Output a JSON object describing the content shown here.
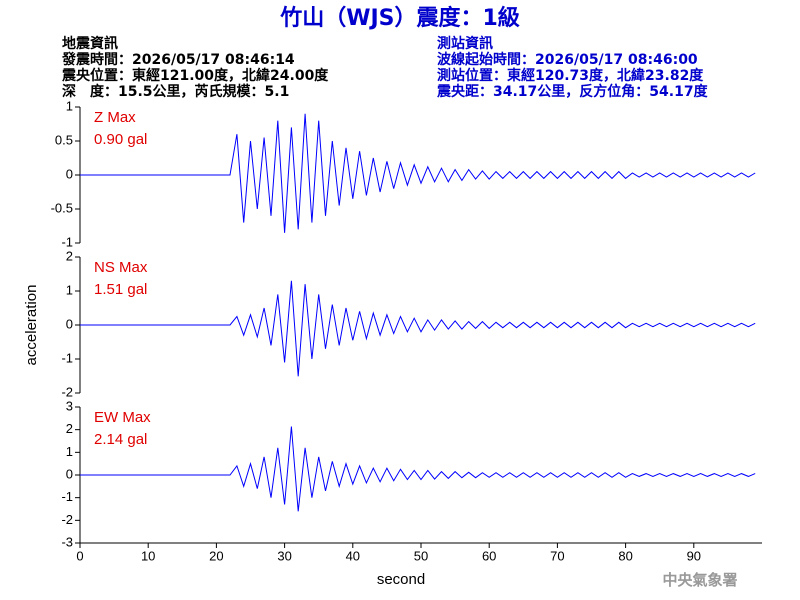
{
  "header": {
    "title": "竹山（WJS）震度：1級",
    "left": [
      "地震資訊",
      "發震時間：2026/05/17 08:46:14",
      "震央位置：東經121.00度，北緯24.00度",
      "深　度：15.5公里，芮氏規模：5.1"
    ],
    "right": [
      "測站資訊",
      "波線起始時間：2026/05/17 08:46:00",
      "測站位置：東經120.73度，北緯23.82度",
      "震央距：34.17公里，反方位角：54.17度"
    ],
    "footer": "中央氣象署"
  },
  "chart_data": [
    {
      "type": "line",
      "labels": [
        "Z Max",
        "0.90 gal"
      ],
      "label_color": "#e00000",
      "color": "#0000ff",
      "xlim": [
        0,
        100
      ],
      "ylim": [
        -1,
        1
      ],
      "yticks": [
        -1,
        -0.5,
        0,
        0.5,
        1
      ],
      "x": [
        0,
        22,
        23,
        24,
        25,
        26,
        27,
        28,
        29,
        30,
        31,
        32,
        33,
        34,
        35,
        36,
        37,
        38,
        39,
        40,
        41,
        42,
        43,
        44,
        45,
        46,
        47,
        48,
        49,
        50,
        51,
        52,
        53,
        54,
        55,
        56,
        57,
        58,
        59,
        60,
        61,
        62,
        63,
        64,
        65,
        66,
        67,
        68,
        69,
        70,
        71,
        72,
        73,
        74,
        75,
        76,
        77,
        78,
        79,
        80,
        81,
        82,
        83,
        84,
        85,
        86,
        87,
        88,
        89,
        90,
        91,
        92,
        93,
        94,
        95,
        96,
        97,
        98,
        99
      ],
      "values": [
        0,
        0,
        0.6,
        -0.7,
        0.5,
        -0.5,
        0.55,
        -0.6,
        0.8,
        -0.85,
        0.7,
        -0.8,
        0.9,
        -0.7,
        0.8,
        -0.6,
        0.5,
        -0.45,
        0.4,
        -0.35,
        0.35,
        -0.3,
        0.25,
        -0.25,
        0.2,
        -0.2,
        0.18,
        -0.15,
        0.15,
        -0.12,
        0.12,
        -0.1,
        0.1,
        -0.1,
        0.08,
        -0.08,
        0.08,
        -0.06,
        0.06,
        -0.06,
        0.05,
        -0.05,
        0.05,
        -0.05,
        0.05,
        -0.05,
        0.05,
        -0.05,
        0.05,
        -0.05,
        0.05,
        -0.05,
        0.05,
        -0.05,
        0.05,
        -0.05,
        0.05,
        -0.05,
        0.05,
        -0.05,
        0.03,
        -0.03,
        0.03,
        -0.03,
        0.03,
        -0.03,
        0.03,
        -0.03,
        0.03,
        -0.03,
        0.03,
        -0.03,
        0.03,
        -0.03,
        0.03,
        -0.03,
        0.03,
        -0.03,
        0.03
      ]
    },
    {
      "type": "line",
      "labels": [
        "NS Max",
        "1.51 gal"
      ],
      "label_color": "#e00000",
      "color": "#0000ff",
      "ylabel": "acceleration",
      "xlim": [
        0,
        100
      ],
      "ylim": [
        -2,
        2
      ],
      "yticks": [
        -2,
        -1,
        0,
        1,
        2
      ],
      "x": [
        0,
        22,
        23,
        24,
        25,
        26,
        27,
        28,
        29,
        30,
        31,
        32,
        33,
        34,
        35,
        36,
        37,
        38,
        39,
        40,
        41,
        42,
        43,
        44,
        45,
        46,
        47,
        48,
        49,
        50,
        51,
        52,
        53,
        54,
        55,
        56,
        57,
        58,
        59,
        60,
        61,
        62,
        63,
        64,
        65,
        66,
        67,
        68,
        69,
        70,
        71,
        72,
        73,
        74,
        75,
        76,
        77,
        78,
        79,
        80,
        81,
        82,
        83,
        84,
        85,
        86,
        87,
        88,
        89,
        90,
        91,
        92,
        93,
        94,
        95,
        96,
        97,
        98,
        99
      ],
      "values": [
        0,
        0,
        0.25,
        -0.3,
        0.3,
        -0.35,
        0.5,
        -0.6,
        0.9,
        -1.1,
        1.3,
        -1.51,
        1.2,
        -1.0,
        0.9,
        -0.7,
        0.6,
        -0.6,
        0.5,
        -0.45,
        0.4,
        -0.4,
        0.35,
        -0.3,
        0.3,
        -0.25,
        0.25,
        -0.2,
        0.2,
        -0.2,
        0.15,
        -0.15,
        0.15,
        -0.12,
        0.12,
        -0.12,
        0.1,
        -0.1,
        0.1,
        -0.1,
        0.08,
        -0.08,
        0.08,
        -0.08,
        0.08,
        -0.08,
        0.08,
        -0.08,
        0.08,
        -0.08,
        0.08,
        -0.08,
        0.08,
        -0.08,
        0.08,
        -0.08,
        0.08,
        -0.08,
        0.08,
        -0.08,
        0.05,
        -0.05,
        0.05,
        -0.05,
        0.05,
        -0.05,
        0.05,
        -0.05,
        0.05,
        -0.05,
        0.05,
        -0.05,
        0.05,
        -0.05,
        0.05,
        -0.05,
        0.05,
        -0.05,
        0.05
      ]
    },
    {
      "type": "line",
      "labels": [
        "EW Max",
        "2.14 gal"
      ],
      "label_color": "#e00000",
      "color": "#0000ff",
      "xlabel": "second",
      "xlim": [
        0,
        100
      ],
      "xticks": [
        0,
        10,
        20,
        30,
        40,
        50,
        60,
        70,
        80,
        90
      ],
      "ylim": [
        -3,
        3
      ],
      "yticks": [
        -3,
        -2,
        -1,
        0,
        1,
        2,
        3
      ],
      "x": [
        0,
        22,
        23,
        24,
        25,
        26,
        27,
        28,
        29,
        30,
        31,
        32,
        33,
        34,
        35,
        36,
        37,
        38,
        39,
        40,
        41,
        42,
        43,
        44,
        45,
        46,
        47,
        48,
        49,
        50,
        51,
        52,
        53,
        54,
        55,
        56,
        57,
        58,
        59,
        60,
        61,
        62,
        63,
        64,
        65,
        66,
        67,
        68,
        69,
        70,
        71,
        72,
        73,
        74,
        75,
        76,
        77,
        78,
        79,
        80,
        81,
        82,
        83,
        84,
        85,
        86,
        87,
        88,
        89,
        90,
        91,
        92,
        93,
        94,
        95,
        96,
        97,
        98,
        99
      ],
      "values": [
        0,
        0,
        0.4,
        -0.5,
        0.5,
        -0.6,
        0.8,
        -1.0,
        1.2,
        -1.3,
        2.14,
        -1.6,
        1.2,
        -1.0,
        0.8,
        -0.7,
        0.6,
        -0.5,
        0.5,
        -0.4,
        0.4,
        -0.35,
        0.3,
        -0.3,
        0.3,
        -0.25,
        0.25,
        -0.2,
        0.2,
        -0.2,
        0.2,
        -0.18,
        0.15,
        -0.15,
        0.15,
        -0.12,
        0.12,
        -0.12,
        0.1,
        -0.1,
        0.1,
        -0.1,
        0.1,
        -0.1,
        0.1,
        -0.1,
        0.1,
        -0.1,
        0.1,
        -0.1,
        0.1,
        -0.1,
        0.1,
        -0.1,
        0.1,
        -0.1,
        0.1,
        -0.1,
        0.1,
        -0.1,
        0.06,
        -0.06,
        0.06,
        -0.06,
        0.06,
        -0.06,
        0.06,
        -0.06,
        0.06,
        -0.06,
        0.06,
        -0.06,
        0.06,
        -0.06,
        0.06,
        -0.06,
        0.06,
        -0.06,
        0.06
      ]
    }
  ]
}
